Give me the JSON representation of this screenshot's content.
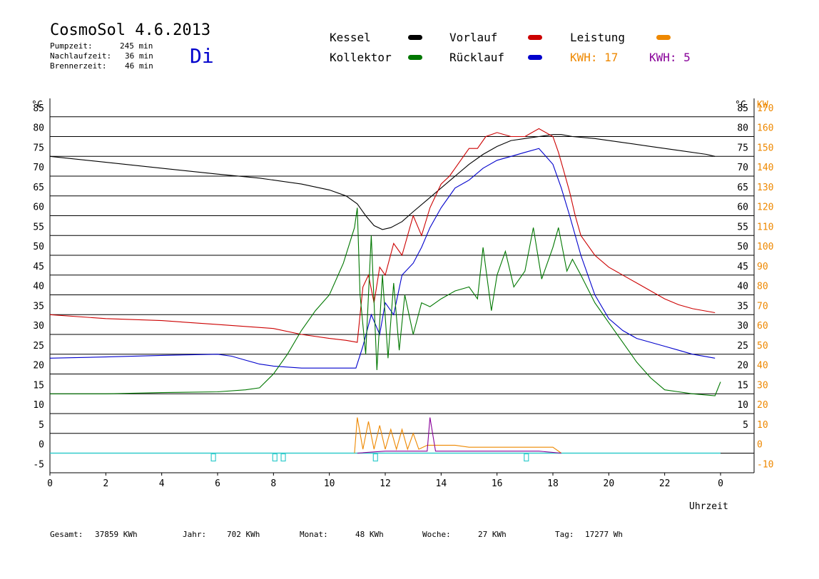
{
  "header": {
    "title": "CosmoSol 4.6.2013",
    "day": "Di",
    "stats": [
      {
        "label": "Pumpzeit:",
        "value": "245 min"
      },
      {
        "label": "Nachlaufzeit:",
        "value": "36 min"
      },
      {
        "label": "Brennerzeit:",
        "value": "46 min"
      }
    ]
  },
  "legend": {
    "kessel": "Kessel",
    "kollektor": "Kollektor",
    "vorlauf": "Vorlauf",
    "ruecklauf": "Rücklauf",
    "leistung": "Leistung",
    "kwh1": "KWH: 17",
    "kwh2": "KWH: 5"
  },
  "footer": {
    "gesamt_label": "Gesamt:",
    "gesamt_value": "37859 KWh",
    "jahr_label": "Jahr:",
    "jahr_value": "702 KWh",
    "monat_label": "Monat:",
    "monat_value": "48 KWh",
    "woche_label": "Woche:",
    "woche_value": "27 KWh",
    "tag_label": "Tag:",
    "tag_value": "17277 Wh"
  },
  "colors": {
    "kessel": "#000000",
    "kollektor": "#007700",
    "vorlauf": "#cc0000",
    "ruecklauf": "#0000cc",
    "leistung": "#ee8800",
    "kwh2": "#880099",
    "pump": "#33cccc",
    "day": "#0000cc"
  },
  "chart_data": {
    "type": "line",
    "xlabel": "Uhrzeit",
    "ylabel_left": "°C",
    "ylabel_right_c": "°C",
    "ylabel_right_kw": "KW",
    "xlim": [
      0,
      24
    ],
    "ylim": [
      -5,
      90
    ],
    "x_ticks": [
      "0",
      "2",
      "4",
      "6",
      "8",
      "10",
      "12",
      "14",
      "16",
      "18",
      "20",
      "22",
      "0"
    ],
    "y_left_ticks": [
      "-5",
      "0",
      "5",
      "10",
      "15",
      "20",
      "25",
      "30",
      "35",
      "40",
      "45",
      "50",
      "55",
      "60",
      "65",
      "70",
      "75",
      "80",
      "85"
    ],
    "y_right_c_ticks": [
      "5",
      "10",
      "15",
      "20",
      "25",
      "30",
      "35",
      "40",
      "45",
      "50",
      "55",
      "60",
      "65",
      "70",
      "75",
      "80",
      "85"
    ],
    "y_right_kw_ticks": [
      "-10",
      "0",
      "10",
      "20",
      "30",
      "40",
      "50",
      "60",
      "70",
      "80",
      "90",
      "100",
      "110",
      "120",
      "130",
      "140",
      "150",
      "160",
      "170"
    ],
    "grid": true,
    "series": [
      {
        "name": "Kessel",
        "color": "#000000",
        "x": [
          0,
          2,
          4,
          6,
          7.5,
          9,
          10,
          10.6,
          11,
          11.3,
          11.6,
          11.9,
          12.2,
          12.6,
          13,
          13.5,
          14,
          14.5,
          15,
          15.5,
          16,
          16.5,
          17,
          17.5,
          18,
          18.3,
          18.7,
          19.5,
          20.5,
          21.5,
          22.5,
          23.5,
          23.8
        ],
        "y": [
          75,
          73.5,
          72,
          70.5,
          69.5,
          68,
          66.5,
          65,
          63,
          60,
          57.5,
          56.5,
          57,
          58.5,
          61,
          64,
          67,
          70,
          73,
          75.5,
          77.5,
          79,
          79.5,
          80,
          80.5,
          80.5,
          80,
          79.5,
          78.5,
          77.5,
          76.5,
          75.5,
          75
        ]
      },
      {
        "name": "Vorlauf",
        "color": "#cc0000",
        "x": [
          0,
          2,
          4,
          6,
          8,
          9,
          10,
          10.6,
          11,
          11.2,
          11.4,
          11.6,
          11.8,
          12,
          12.3,
          12.6,
          13,
          13.3,
          13.6,
          14,
          14.3,
          14.6,
          15,
          15.3,
          15.6,
          16,
          16.5,
          17,
          17.5,
          18,
          18.2,
          18.4,
          18.6,
          18.8,
          19,
          19.5,
          20,
          20.5,
          21,
          21.5,
          22,
          22.5,
          23,
          23.8
        ],
        "y": [
          35,
          34,
          33.5,
          32.5,
          31.5,
          30,
          29,
          28.5,
          28,
          42,
          45,
          38,
          47,
          45,
          53,
          50,
          60,
          55,
          62,
          68,
          70,
          73,
          77,
          77,
          80,
          81,
          80,
          80,
          82,
          80,
          76,
          71,
          66,
          60,
          55,
          50,
          47,
          45,
          43,
          41,
          39,
          37.5,
          36.5,
          35.5
        ]
      },
      {
        "name": "Rücklauf",
        "color": "#0000cc",
        "x": [
          0,
          2,
          4,
          6,
          6.5,
          7,
          7.5,
          8,
          9,
          10,
          10.5,
          10.95,
          11.2,
          11.5,
          11.8,
          12,
          12.3,
          12.6,
          13,
          13.3,
          13.6,
          14,
          14.5,
          15,
          15.5,
          16,
          16.5,
          17,
          17.5,
          18,
          18.3,
          18.6,
          19,
          19.5,
          20,
          20.5,
          21,
          21.5,
          22,
          22.5,
          23,
          23.8
        ],
        "y": [
          24,
          24.3,
          24.7,
          25,
          24.5,
          23.5,
          22.5,
          22,
          21.5,
          21.5,
          21.5,
          21.5,
          27,
          35,
          30,
          38,
          35,
          45,
          48,
          52,
          57,
          62,
          67,
          69,
          72,
          74,
          75,
          76,
          77,
          73,
          67,
          60,
          50,
          40,
          34,
          31,
          29,
          28,
          27,
          26,
          25,
          24
        ]
      },
      {
        "name": "Kollektor",
        "color": "#007700",
        "x": [
          0,
          2,
          4,
          6,
          7,
          7.5,
          8,
          8.5,
          9,
          9.5,
          10,
          10.5,
          10.9,
          11,
          11.1,
          11.3,
          11.5,
          11.7,
          11.9,
          12.1,
          12.3,
          12.5,
          12.7,
          13,
          13.3,
          13.6,
          14,
          14.5,
          15,
          15.3,
          15.5,
          15.8,
          16,
          16.3,
          16.6,
          17,
          17.3,
          17.6,
          18,
          18.2,
          18.5,
          18.7,
          19,
          19.5,
          20,
          20.5,
          21,
          21.5,
          22,
          22.5,
          23,
          23.8,
          24
        ],
        "y": [
          15,
          15,
          15.3,
          15.5,
          16,
          16.5,
          20,
          25,
          31,
          36,
          40,
          48,
          57,
          62,
          40,
          25,
          55,
          21,
          45,
          24,
          43,
          26,
          40,
          30,
          38,
          37,
          39,
          41,
          42,
          39,
          52,
          36,
          45,
          51,
          42,
          46,
          57,
          44,
          52,
          57,
          46,
          49,
          45,
          38,
          33,
          28,
          23,
          19,
          16,
          15.5,
          15,
          14.5,
          18
        ]
      },
      {
        "name": "Leistung",
        "color": "#ee8800",
        "x": [
          10.9,
          11,
          11.2,
          11.4,
          11.6,
          11.8,
          12,
          12.2,
          12.4,
          12.6,
          12.8,
          13,
          13.2,
          13.5,
          14,
          14.5,
          15,
          15.5,
          16,
          16.5,
          17,
          17.5,
          18,
          18.3
        ],
        "y": [
          0,
          9,
          1,
          8,
          1,
          7,
          1,
          6,
          1,
          6,
          1,
          5,
          1,
          2,
          2,
          2,
          1.5,
          1.5,
          1.5,
          1.5,
          1.5,
          1.5,
          1.5,
          0
        ]
      },
      {
        "name": "KWH: 5",
        "color": "#880099",
        "x": [
          11,
          12,
          13,
          13.5,
          13.6,
          13.8,
          14.5,
          15.5,
          16.5,
          17.5,
          18.3
        ],
        "y": [
          0,
          0.5,
          0.5,
          0.5,
          9,
          0.5,
          0.5,
          0.5,
          0.5,
          0.5,
          0
        ]
      }
    ],
    "pump_markers_x": [
      5.85,
      8.05,
      8.35,
      11.65,
      17.05
    ]
  }
}
